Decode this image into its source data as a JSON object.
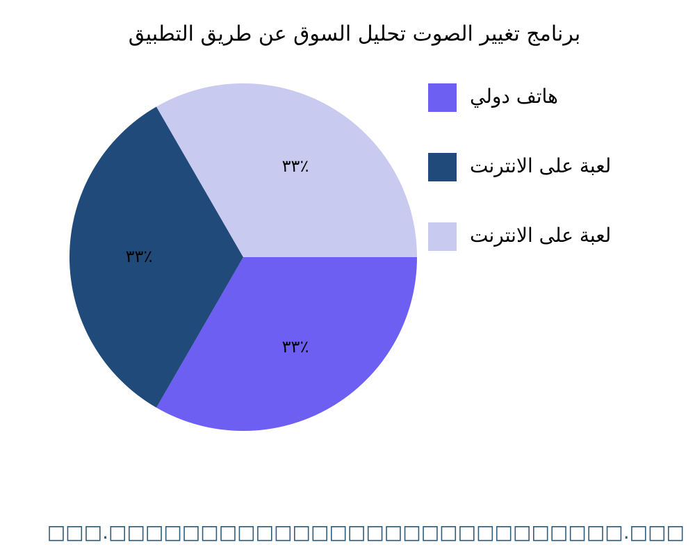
{
  "chart_data": {
    "type": "pie",
    "title": "برنامج تغيير الصوت تحليل السوق عن طريق التطبيق",
    "categories": [
      "هاتف دولي",
      "لعبة على الانترنت",
      "لعبة على الانترنت"
    ],
    "values": [
      33.33,
      33.33,
      33.33
    ],
    "value_labels": [
      "٣٣٪",
      "٣٣٪",
      "٣٣٪"
    ],
    "colors": [
      "#6c5ff2",
      "#1f4a7a",
      "#c9caf0"
    ],
    "footer": "□□□.□□□□□□□□□□□□□□□□□□□□□□□□□□□□.□□□"
  }
}
